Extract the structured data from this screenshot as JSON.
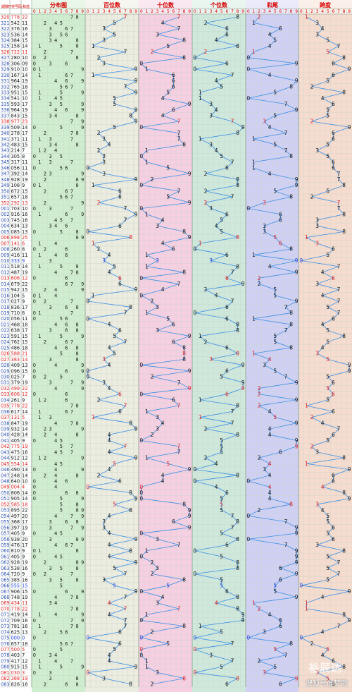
{
  "header": {
    "issue_label": "期数",
    "prize_label": "开奖号码",
    "sum_label": "和值",
    "sections": [
      "分布图",
      "百位数",
      "十位数",
      "个位数",
      "和尾",
      "跨度"
    ],
    "digits": [
      "0",
      "1",
      "2",
      "3",
      "4",
      "5",
      "6",
      "7",
      "8",
      "9"
    ]
  },
  "colors": {
    "line": "#3a8fe6",
    "red": "#e02020",
    "blue": "#1a3fd6",
    "dark": "#111111",
    "section_bg": [
      "#cfeecf",
      "#ecece0",
      "#f6cfe2",
      "#cfe8dc",
      "#d0d0f4",
      "#f6dccf"
    ]
  },
  "watermark": "搜狐号@梦歌",
  "watermark_logo": "裕辰达",
  "rows": [
    {
      "issue": "320",
      "num": "778",
      "sum": "22",
      "c": "r"
    },
    {
      "issue": "321",
      "num": "542",
      "sum": "11",
      "c": "d"
    },
    {
      "issue": "322",
      "num": "376",
      "sum": "16",
      "c": "d"
    },
    {
      "issue": "323",
      "num": "536",
      "sum": "14",
      "c": "d"
    },
    {
      "issue": "324",
      "num": "384",
      "sum": "15",
      "c": "d"
    },
    {
      "issue": "325",
      "num": "158",
      "sum": "14",
      "c": "d"
    },
    {
      "issue": "326",
      "num": "722",
      "sum": "11",
      "c": "r"
    },
    {
      "issue": "327",
      "num": "280",
      "sum": "10",
      "c": "d"
    },
    {
      "issue": "328",
      "num": "306",
      "sum": "09",
      "c": "d"
    },
    {
      "issue": "329",
      "num": "910",
      "sum": "10",
      "c": "d"
    },
    {
      "issue": "330",
      "num": "167",
      "sum": "14",
      "c": "d"
    },
    {
      "issue": "331",
      "num": "964",
      "sum": "19",
      "c": "d"
    },
    {
      "issue": "332",
      "num": "765",
      "sum": "18",
      "c": "d"
    },
    {
      "issue": "333",
      "num": "951",
      "sum": "15",
      "c": "d"
    },
    {
      "issue": "334",
      "num": "541",
      "sum": "10",
      "c": "d"
    },
    {
      "issue": "335",
      "num": "593",
      "sum": "17",
      "c": "d"
    },
    {
      "issue": "336",
      "num": "964",
      "sum": "19",
      "c": "d"
    },
    {
      "issue": "337",
      "num": "843",
      "sum": "15",
      "c": "d"
    },
    {
      "issue": "338",
      "num": "977",
      "sum": "23",
      "c": "r"
    },
    {
      "issue": "339",
      "num": "509",
      "sum": "14",
      "c": "d"
    },
    {
      "issue": "340",
      "num": "278",
      "sum": "17",
      "c": "d"
    },
    {
      "issue": "341",
      "num": "371",
      "sum": "11",
      "c": "d"
    },
    {
      "issue": "342",
      "num": "483",
      "sum": "15",
      "c": "d"
    },
    {
      "issue": "343",
      "num": "214",
      "sum": "7",
      "c": "d"
    },
    {
      "issue": "344",
      "num": "305",
      "sum": "8",
      "c": "d"
    },
    {
      "issue": "345",
      "num": "317",
      "sum": "11",
      "c": "d"
    },
    {
      "issue": "346",
      "num": "056",
      "sum": "11",
      "c": "d"
    },
    {
      "issue": "347",
      "num": "392",
      "sum": "14",
      "c": "d"
    },
    {
      "issue": "348",
      "num": "928",
      "sum": "19",
      "c": "d"
    },
    {
      "issue": "349",
      "num": "108",
      "sum": "9",
      "c": "d"
    },
    {
      "issue": "350",
      "num": "672",
      "sum": "15",
      "c": "d"
    },
    {
      "issue": "351",
      "num": "657",
      "sum": "18",
      "c": "d"
    },
    {
      "issue": "352",
      "num": "292",
      "sum": "13",
      "c": "r"
    },
    {
      "issue": "001",
      "num": "703",
      "sum": "10",
      "c": "d"
    },
    {
      "issue": "002",
      "num": "916",
      "sum": "16",
      "c": "d"
    },
    {
      "issue": "003",
      "num": "745",
      "sum": "16",
      "c": "d"
    },
    {
      "issue": "004",
      "num": "634",
      "sum": "13",
      "c": "d"
    },
    {
      "issue": "005",
      "num": "085",
      "sum": "13",
      "c": "d"
    },
    {
      "issue": "006",
      "num": "898",
      "sum": "25",
      "c": "r"
    },
    {
      "issue": "007",
      "num": "141",
      "sum": "6",
      "c": "r"
    },
    {
      "issue": "008",
      "num": "260",
      "sum": "8",
      "c": "d"
    },
    {
      "issue": "009",
      "num": "416",
      "sum": "11",
      "c": "d"
    },
    {
      "issue": "010",
      "num": "333",
      "sum": "9",
      "c": "b"
    },
    {
      "issue": "011",
      "num": "518",
      "sum": "14",
      "c": "d"
    },
    {
      "issue": "012",
      "num": "487",
      "sum": "19",
      "c": "d"
    },
    {
      "issue": "013",
      "num": "606",
      "sum": "12",
      "c": "r"
    },
    {
      "issue": "014",
      "num": "679",
      "sum": "22",
      "c": "d"
    },
    {
      "issue": "015",
      "num": "942",
      "sum": "15",
      "c": "d"
    },
    {
      "issue": "016",
      "num": "104",
      "sum": "5",
      "c": "d"
    },
    {
      "issue": "017",
      "num": "027",
      "sum": "9",
      "c": "d"
    },
    {
      "issue": "018",
      "num": "836",
      "sum": "17",
      "c": "d"
    },
    {
      "issue": "019",
      "num": "710",
      "sum": "8",
      "c": "d"
    },
    {
      "issue": "020",
      "num": "056",
      "sum": "11",
      "c": "d"
    },
    {
      "issue": "021",
      "num": "468",
      "sum": "18",
      "c": "d"
    },
    {
      "issue": "022",
      "num": "638",
      "sum": "17",
      "c": "d"
    },
    {
      "issue": "023",
      "num": "591",
      "sum": "15",
      "c": "d"
    },
    {
      "issue": "024",
      "num": "762",
      "sum": "15",
      "c": "d"
    },
    {
      "issue": "025",
      "num": "486",
      "sum": "18",
      "c": "d"
    },
    {
      "issue": "026",
      "num": "588",
      "sum": "21",
      "c": "r"
    },
    {
      "issue": "027",
      "num": "383",
      "sum": "14",
      "c": "r"
    },
    {
      "issue": "028",
      "num": "409",
      "sum": "13",
      "c": "d"
    },
    {
      "issue": "029",
      "num": "096",
      "sum": "15",
      "c": "d"
    },
    {
      "issue": "030",
      "num": "025",
      "sum": "7",
      "c": "d"
    },
    {
      "issue": "031",
      "num": "379",
      "sum": "19",
      "c": "d"
    },
    {
      "issue": "032",
      "num": "499",
      "sum": "22",
      "c": "r"
    },
    {
      "issue": "033",
      "num": "606",
      "sum": "12",
      "c": "r"
    },
    {
      "issue": "034",
      "num": "261",
      "sum": "9",
      "c": "d"
    },
    {
      "issue": "035",
      "num": "778",
      "sum": "22",
      "c": "r"
    },
    {
      "issue": "036",
      "num": "617",
      "sum": "14",
      "c": "d"
    },
    {
      "issue": "037",
      "num": "131",
      "sum": "5",
      "c": "r"
    },
    {
      "issue": "038",
      "num": "847",
      "sum": "19",
      "c": "d"
    },
    {
      "issue": "039",
      "num": "932",
      "sum": "14",
      "c": "d"
    },
    {
      "issue": "040",
      "num": "428",
      "sum": "14",
      "c": "d"
    },
    {
      "issue": "041",
      "num": "405",
      "sum": "9",
      "c": "d"
    },
    {
      "issue": "042",
      "num": "775",
      "sum": "19",
      "c": "r"
    },
    {
      "issue": "043",
      "num": "475",
      "sum": "16",
      "c": "d"
    },
    {
      "issue": "044",
      "num": "912",
      "sum": "12",
      "c": "d"
    },
    {
      "issue": "045",
      "num": "554",
      "sum": "14",
      "c": "r"
    },
    {
      "issue": "046",
      "num": "490",
      "sum": "13",
      "c": "d"
    },
    {
      "issue": "047",
      "num": "248",
      "sum": "14",
      "c": "d"
    },
    {
      "issue": "048",
      "num": "640",
      "sum": "10",
      "c": "d"
    },
    {
      "issue": "049",
      "num": "004",
      "sum": "4",
      "c": "r"
    },
    {
      "issue": "050",
      "num": "806",
      "sum": "14",
      "c": "d"
    },
    {
      "issue": "051",
      "num": "905",
      "sum": "14",
      "c": "d"
    },
    {
      "issue": "052",
      "num": "585",
      "sum": "18",
      "c": "r"
    },
    {
      "issue": "053",
      "num": "895",
      "sum": "22",
      "c": "d"
    },
    {
      "issue": "054",
      "num": "497",
      "sum": "20",
      "c": "d"
    },
    {
      "issue": "055",
      "num": "368",
      "sum": "17",
      "c": "d"
    },
    {
      "issue": "056",
      "num": "397",
      "sum": "19",
      "c": "d"
    },
    {
      "issue": "057",
      "num": "405",
      "sum": "9",
      "c": "d"
    },
    {
      "issue": "058",
      "num": "938",
      "sum": "20",
      "c": "d"
    },
    {
      "issue": "059",
      "num": "476",
      "sum": "17",
      "c": "d"
    },
    {
      "issue": "060",
      "num": "810",
      "sum": "9",
      "c": "d"
    },
    {
      "issue": "061",
      "num": "405",
      "sum": "9",
      "c": "d"
    },
    {
      "issue": "062",
      "num": "928",
      "sum": "19",
      "c": "d"
    },
    {
      "issue": "063",
      "num": "538",
      "sum": "16",
      "c": "d"
    },
    {
      "issue": "064",
      "num": "720",
      "sum": "9",
      "c": "d"
    },
    {
      "issue": "065",
      "num": "385",
      "sum": "16",
      "c": "d"
    },
    {
      "issue": "066",
      "num": "555",
      "sum": "15",
      "c": "b"
    },
    {
      "issue": "067",
      "num": "906",
      "sum": "15",
      "c": "d"
    },
    {
      "issue": "068",
      "num": "748",
      "sum": "19",
      "c": "d"
    },
    {
      "issue": "069",
      "num": "434",
      "sum": "11",
      "c": "r"
    },
    {
      "issue": "070",
      "num": "778",
      "sum": "22",
      "c": "r"
    },
    {
      "issue": "071",
      "num": "419",
      "sum": "14",
      "c": "d"
    },
    {
      "issue": "072",
      "num": "709",
      "sum": "16",
      "c": "d"
    },
    {
      "issue": "073",
      "num": "781",
      "sum": "16",
      "c": "d"
    },
    {
      "issue": "074",
      "num": "625",
      "sum": "13",
      "c": "d"
    },
    {
      "issue": "075",
      "num": "000",
      "sum": "0",
      "c": "b"
    },
    {
      "issue": "076",
      "num": "657",
      "sum": "18",
      "c": "d"
    },
    {
      "issue": "077",
      "num": "500",
      "sum": "5",
      "c": "r"
    },
    {
      "issue": "078",
      "num": "403",
      "sum": "7",
      "c": "d"
    },
    {
      "issue": "079",
      "num": "417",
      "sum": "12",
      "c": "d"
    },
    {
      "issue": "080",
      "num": "915",
      "sum": "15",
      "c": "d"
    },
    {
      "issue": "081",
      "num": "030",
      "sum": "3",
      "c": "r"
    },
    {
      "issue": "082",
      "num": "388",
      "sum": "19",
      "c": "r"
    },
    {
      "issue": "083",
      "num": "826",
      "sum": "16",
      "c": "d"
    }
  ]
}
